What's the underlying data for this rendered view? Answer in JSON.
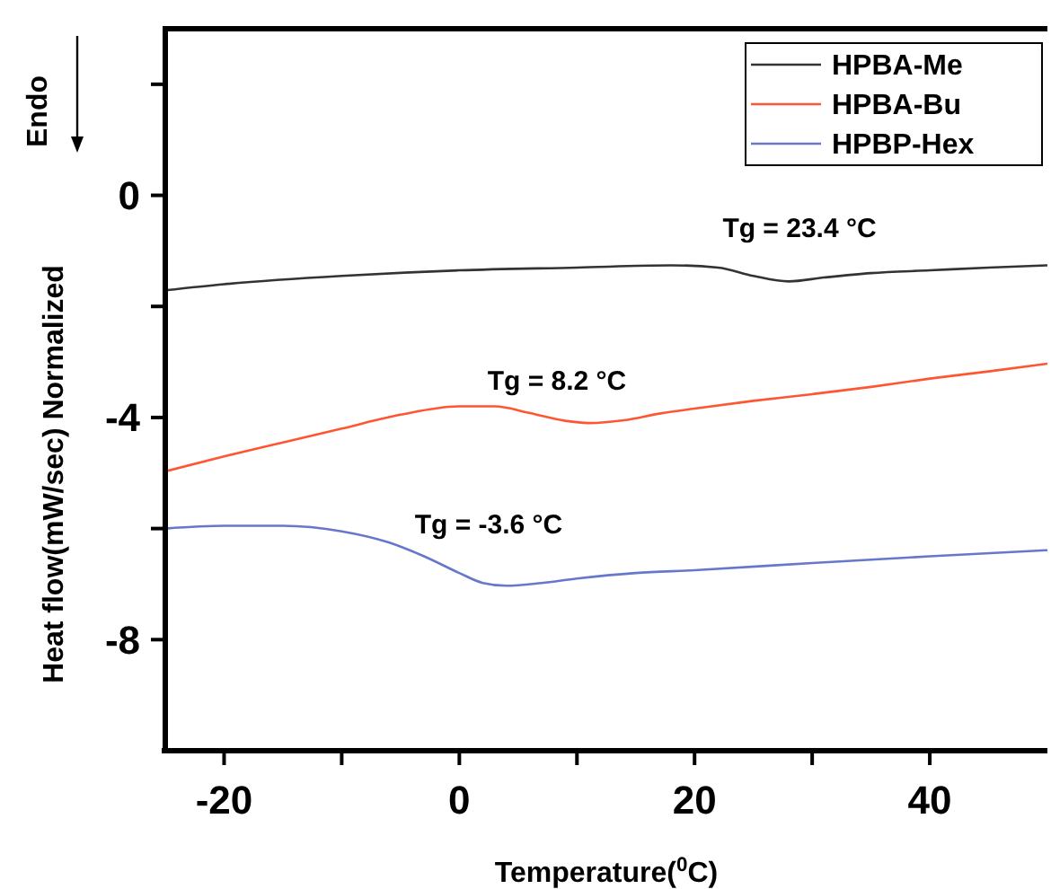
{
  "chart_data": {
    "type": "line",
    "xlabel": "Temperature($^{0}$C)",
    "ylabel": "Heat flow(mW/sec) Normalized",
    "xlim": [
      -25,
      50
    ],
    "ylim": [
      -10,
      3
    ],
    "xticks": [
      -20,
      {
        "value": -10,
        "label": null
      },
      0,
      {
        "value": 10,
        "label": null
      },
      20,
      {
        "value": 30,
        "label": null
      },
      40
    ],
    "yticks": [
      {
        "value": 2,
        "label": null
      },
      0,
      {
        "value": -2,
        "label": null
      },
      -4,
      {
        "value": -6,
        "label": null
      },
      -8
    ],
    "legend": "top right",
    "grid": false,
    "series": [
      {
        "name": "HPBA-Me",
        "color": "#333333",
        "x": [
          -25,
          -20,
          -10,
          0,
          10,
          18,
          22,
          25,
          28,
          31,
          35,
          40,
          45,
          50
        ],
        "values": [
          -1.71,
          -1.6,
          -1.45,
          -1.35,
          -1.3,
          -1.26,
          -1.3,
          -1.45,
          -1.55,
          -1.48,
          -1.4,
          -1.35,
          -1.3,
          -1.26
        ]
      },
      {
        "name": "HPBA-Bu",
        "color": "#ff5533",
        "x": [
          -25,
          -20,
          -15,
          -10,
          -5,
          0,
          3,
          6,
          9,
          11,
          14,
          17,
          20,
          25,
          30,
          35,
          40,
          45,
          50
        ],
        "values": [
          -4.97,
          -4.7,
          -4.45,
          -4.2,
          -3.95,
          -3.8,
          -3.8,
          -3.92,
          -4.06,
          -4.1,
          -4.05,
          -3.93,
          -3.84,
          -3.7,
          -3.58,
          -3.45,
          -3.3,
          -3.17,
          -3.03
        ]
      },
      {
        "name": "HPBP-Hex",
        "color": "#6677cc",
        "x": [
          -25,
          -20,
          -15,
          -10,
          -6,
          -3,
          0,
          2,
          4,
          7,
          10,
          15,
          20,
          30,
          40,
          50
        ],
        "values": [
          -6.0,
          -5.95,
          -5.95,
          -6.05,
          -6.25,
          -6.5,
          -6.8,
          -6.98,
          -7.03,
          -6.98,
          -6.9,
          -6.8,
          -6.75,
          -6.62,
          -6.5,
          -6.39
        ]
      }
    ],
    "annotations": [
      "Tg = 23.4 °C",
      "Tg = 8.2 °C",
      "Tg = -3.6 °C",
      "Endo"
    ]
  }
}
